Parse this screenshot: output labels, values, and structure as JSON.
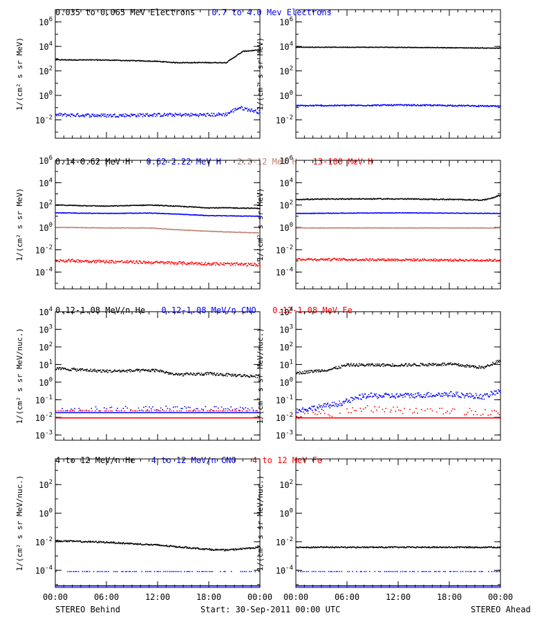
{
  "colors": {
    "black": "#000000",
    "blue": "#0000ff",
    "tan": "#c08070",
    "red": "#ff0000",
    "background": "#ffffff"
  },
  "footer": {
    "left": "STEREO Behind",
    "center": "Start: 30-Sep-2011 00:00 UTC",
    "right": "STEREO Ahead"
  },
  "x_ticks": [
    "00:00",
    "06:00",
    "12:00",
    "18:00",
    "00:00"
  ],
  "chart_data": [
    {
      "type": "scatter",
      "row": 0,
      "col": 0,
      "scale": "log",
      "ylim_log": [
        -3.5,
        7
      ],
      "ylabel": "1/(cm² s sr MeV)",
      "y_ticks": [
        {
          "exp": 6,
          "label": "10^6"
        },
        {
          "exp": 4,
          "label": "10^4"
        },
        {
          "exp": 2,
          "label": "10^2"
        },
        {
          "exp": 0,
          "label": "10^0"
        },
        {
          "exp": -2,
          "label": "10^-2"
        }
      ],
      "x_hours": [
        0,
        24
      ],
      "header": [
        {
          "text": "0.035 to 0.065 MeV Electrons",
          "color": "#000000"
        },
        {
          "text": "0.7 to 4.0 Mev Electrons",
          "color": "#0000ff"
        }
      ],
      "series": [
        {
          "color": "#000000",
          "points": [
            [
              0,
              2.95
            ],
            [
              6,
              2.93
            ],
            [
              12,
              2.82
            ],
            [
              14,
              2.72
            ],
            [
              18,
              2.72
            ],
            [
              20,
              2.72
            ],
            [
              21,
              3.2
            ],
            [
              22,
              3.65
            ],
            [
              24,
              3.75
            ]
          ],
          "noise": 0.03
        },
        {
          "color": "#0000ff",
          "points": [
            [
              0,
              -1.55
            ],
            [
              6,
              -1.6
            ],
            [
              12,
              -1.55
            ],
            [
              18,
              -1.55
            ],
            [
              20,
              -1.5
            ],
            [
              21.5,
              -0.95
            ],
            [
              22.5,
              -1.1
            ],
            [
              24,
              -1.35
            ]
          ],
          "noise": 0.14
        }
      ]
    },
    {
      "type": "scatter",
      "row": 0,
      "col": 1,
      "scale": "log",
      "ylim_log": [
        -3.5,
        7
      ],
      "ylabel": "1/(cm² s sr MeV)",
      "y_ticks": [
        {
          "exp": 6,
          "label": "10^6"
        },
        {
          "exp": 4,
          "label": "10^4"
        },
        {
          "exp": 2,
          "label": "10^2"
        },
        {
          "exp": 0,
          "label": "10^0"
        },
        {
          "exp": -2,
          "label": "10^-2"
        }
      ],
      "x_hours": [
        0,
        24
      ],
      "header": [],
      "series": [
        {
          "color": "#000000",
          "points": [
            [
              0,
              3.98
            ],
            [
              12,
              3.97
            ],
            [
              24,
              3.9
            ]
          ],
          "noise": 0.02
        },
        {
          "color": "#0000ff",
          "points": [
            [
              0,
              -0.8
            ],
            [
              6,
              -0.78
            ],
            [
              12,
              -0.75
            ],
            [
              18,
              -0.78
            ],
            [
              24,
              -0.85
            ]
          ],
          "noise": 0.05
        }
      ]
    },
    {
      "type": "scatter",
      "row": 1,
      "col": 0,
      "scale": "log",
      "ylim_log": [
        -5.5,
        6
      ],
      "ylabel": "1/(cm² s sr MeV)",
      "y_ticks": [
        {
          "exp": 6,
          "label": "10^6"
        },
        {
          "exp": 4,
          "label": "10^4"
        },
        {
          "exp": 2,
          "label": "10^2"
        },
        {
          "exp": 0,
          "label": "10^0"
        },
        {
          "exp": -2,
          "label": "10^-2"
        },
        {
          "exp": -4,
          "label": "10^-4"
        }
      ],
      "x_hours": [
        0,
        24
      ],
      "header": [
        {
          "text": "0.14-0.62 MeV H",
          "color": "#000000"
        },
        {
          "text": "0.62-2.22 MeV H",
          "color": "#0000ff"
        },
        {
          "text": "2.2-12 MeV H",
          "color": "#c08070"
        },
        {
          "text": "13-100 MeV H",
          "color": "#ff0000"
        }
      ],
      "series": [
        {
          "color": "#000000",
          "points": [
            [
              0,
              2.05
            ],
            [
              6,
              1.95
            ],
            [
              11,
              2.05
            ],
            [
              14,
              1.95
            ],
            [
              18,
              1.8
            ],
            [
              20,
              1.8
            ],
            [
              24,
              1.75
            ]
          ],
          "noise": 0.03
        },
        {
          "color": "#0000ff",
          "points": [
            [
              0,
              1.35
            ],
            [
              6,
              1.3
            ],
            [
              11,
              1.33
            ],
            [
              14,
              1.25
            ],
            [
              18,
              1.1
            ],
            [
              24,
              1.05
            ]
          ],
          "noise": 0.02
        },
        {
          "color": "#c08070",
          "points": [
            [
              0,
              0.05
            ],
            [
              6,
              0.0
            ],
            [
              11,
              0.0
            ],
            [
              14,
              -0.15
            ],
            [
              18,
              -0.3
            ],
            [
              24,
              -0.45
            ]
          ],
          "noise": 0.02
        },
        {
          "color": "#ff0000",
          "points": [
            [
              0,
              -2.9
            ],
            [
              6,
              -3.0
            ],
            [
              12,
              -3.1
            ],
            [
              18,
              -3.2
            ],
            [
              24,
              -3.3
            ]
          ],
          "noise": 0.13
        }
      ]
    },
    {
      "type": "scatter",
      "row": 1,
      "col": 1,
      "scale": "log",
      "ylim_log": [
        -5.5,
        6
      ],
      "ylabel": "1/(cm² s sr MeV)",
      "y_ticks": [
        {
          "exp": 6,
          "label": "10^6"
        },
        {
          "exp": 4,
          "label": "10^4"
        },
        {
          "exp": 2,
          "label": "10^2"
        },
        {
          "exp": 0,
          "label": "10^0"
        },
        {
          "exp": -2,
          "label": "10^-2"
        },
        {
          "exp": -4,
          "label": "10^-4"
        }
      ],
      "x_hours": [
        0,
        24
      ],
      "header": [],
      "series": [
        {
          "color": "#000000",
          "points": [
            [
              0,
              2.55
            ],
            [
              6,
              2.6
            ],
            [
              12,
              2.6
            ],
            [
              18,
              2.55
            ],
            [
              22,
              2.5
            ],
            [
              23,
              2.7
            ],
            [
              24,
              2.95
            ]
          ],
          "noise": 0.04
        },
        {
          "color": "#0000ff",
          "points": [
            [
              0,
              1.3
            ],
            [
              12,
              1.35
            ],
            [
              24,
              1.3
            ]
          ],
          "noise": 0.02
        },
        {
          "color": "#c08070",
          "points": [
            [
              0,
              0.0
            ],
            [
              12,
              0.0
            ],
            [
              24,
              0.0
            ]
          ],
          "noise": 0.015
        },
        {
          "color": "#ff0000",
          "points": [
            [
              0,
              -2.8
            ],
            [
              12,
              -2.85
            ],
            [
              24,
              -2.9
            ]
          ],
          "noise": 0.1
        }
      ]
    },
    {
      "type": "scatter",
      "row": 2,
      "col": 0,
      "scale": "log",
      "ylim_log": [
        -3.3,
        4
      ],
      "ylabel": "1/(cm² s sr MeV/nuc.)",
      "y_ticks": [
        {
          "exp": 4,
          "label": "10^4"
        },
        {
          "exp": 3,
          "label": "10^3"
        },
        {
          "exp": 2,
          "label": "10^2"
        },
        {
          "exp": 1,
          "label": "10^1"
        },
        {
          "exp": 0,
          "label": "10^0"
        },
        {
          "exp": -1,
          "label": "10^-1"
        },
        {
          "exp": -2,
          "label": "10^-2"
        },
        {
          "exp": -3,
          "label": "10^-3"
        }
      ],
      "x_hours": [
        0,
        24
      ],
      "header": [
        {
          "text": "0.12-1.08 MeV/n He",
          "color": "#000000"
        },
        {
          "text": "0.12-1.08 MeV/n CNO",
          "color": "#0000ff"
        },
        {
          "text": "0.12-1.08 MeV Fe",
          "color": "#ff0000"
        }
      ],
      "series": [
        {
          "color": "#000000",
          "points": [
            [
              0,
              0.8
            ],
            [
              6,
              0.65
            ],
            [
              12,
              0.7
            ],
            [
              14,
              0.45
            ],
            [
              18,
              0.5
            ],
            [
              24,
              0.35
            ]
          ],
          "noise": 0.08
        },
        {
          "color": "#0000ff",
          "points": [
            [
              0,
              -1.5
            ],
            [
              12,
              -1.45
            ],
            [
              24,
              -1.5
            ]
          ],
          "noise": 0.12,
          "sparse": true
        },
        {
          "color": "#0000ff",
          "points": [
            [
              0,
              -1.7
            ],
            [
              24,
              -1.7
            ]
          ],
          "noise": 0.0
        },
        {
          "color": "#ff0000",
          "points": [
            [
              0,
              -2.0
            ],
            [
              24,
              -2.0
            ]
          ],
          "noise": 0.0
        },
        {
          "color": "#ff0000",
          "points": [
            [
              0,
              -1.6
            ],
            [
              24,
              -1.6
            ]
          ],
          "noise": 0.0,
          "sparse": true
        }
      ]
    },
    {
      "type": "scatter",
      "row": 2,
      "col": 1,
      "scale": "log",
      "ylim_log": [
        -3.3,
        4
      ],
      "ylabel": "1/(cm² s sr MeV/nuc.)",
      "y_ticks": [
        {
          "exp": 4,
          "label": "10^4"
        },
        {
          "exp": 3,
          "label": "10^3"
        },
        {
          "exp": 2,
          "label": "10^2"
        },
        {
          "exp": 1,
          "label": "10^1"
        },
        {
          "exp": 0,
          "label": "10^0"
        },
        {
          "exp": -1,
          "label": "10^-1"
        },
        {
          "exp": -2,
          "label": "10^-2"
        },
        {
          "exp": -3,
          "label": "10^-3"
        }
      ],
      "x_hours": [
        0,
        24
      ],
      "header": [],
      "series": [
        {
          "color": "#000000",
          "points": [
            [
              0,
              0.55
            ],
            [
              4,
              0.75
            ],
            [
              6,
              1.0
            ],
            [
              12,
              1.0
            ],
            [
              18,
              1.05
            ],
            [
              22,
              0.85
            ],
            [
              24,
              1.3
            ]
          ],
          "noise": 0.08
        },
        {
          "color": "#0000ff",
          "points": [
            [
              0,
              -1.6
            ],
            [
              5,
              -1.2
            ],
            [
              8,
              -0.75
            ],
            [
              12,
              -0.75
            ],
            [
              18,
              -0.65
            ],
            [
              22,
              -0.8
            ],
            [
              24,
              -0.45
            ]
          ],
          "noise": 0.15
        },
        {
          "color": "#ff0000",
          "points": [
            [
              0,
              -1.9
            ],
            [
              5,
              -1.7
            ],
            [
              8,
              -1.5
            ],
            [
              14,
              -1.6
            ],
            [
              24,
              -1.7
            ]
          ],
          "noise": 0.2,
          "sparse": true
        },
        {
          "color": "#ff0000",
          "points": [
            [
              0,
              -2.0
            ],
            [
              24,
              -2.0
            ]
          ],
          "noise": 0.0
        }
      ]
    },
    {
      "type": "scatter",
      "row": 3,
      "col": 0,
      "scale": "log",
      "ylim_log": [
        -5.2,
        3.8
      ],
      "ylabel": "1/(cm² s sr MeV/nuc.)",
      "y_ticks": [
        {
          "exp": 2,
          "label": "10^2"
        },
        {
          "exp": 0,
          "label": "10^0"
        },
        {
          "exp": -2,
          "label": "10^-2"
        },
        {
          "exp": -4,
          "label": "10^-4"
        }
      ],
      "x_hours": [
        0,
        24
      ],
      "header": [
        {
          "text": "4 to 12 MeV/n He",
          "color": "#000000"
        },
        {
          "text": "4 to 12 MeV/n CNO",
          "color": "#0000ff"
        },
        {
          "text": "4 to 12 MeV Fe",
          "color": "#ff0000"
        }
      ],
      "series": [
        {
          "color": "#000000",
          "points": [
            [
              0,
              -1.9
            ],
            [
              6,
              -2.0
            ],
            [
              12,
              -2.2
            ],
            [
              18,
              -2.5
            ],
            [
              20,
              -2.55
            ],
            [
              24,
              -2.35
            ]
          ],
          "noise": 0.05
        },
        {
          "color": "#0000ff",
          "points": [
            [
              0,
              -4.05
            ],
            [
              24,
              -4.05
            ]
          ],
          "noise": 0.0,
          "sparse": true
        },
        {
          "color": "#0000ff",
          "points": [
            [
              0,
              -5.05
            ],
            [
              24,
              -5.05
            ]
          ],
          "noise": 0.0
        }
      ]
    },
    {
      "type": "scatter",
      "row": 3,
      "col": 1,
      "scale": "log",
      "ylim_log": [
        -5.2,
        3.8
      ],
      "ylabel": "1/(cm² s sr MeV/nuc.)",
      "y_ticks": [
        {
          "exp": 2,
          "label": "10^2"
        },
        {
          "exp": 0,
          "label": "10^0"
        },
        {
          "exp": -2,
          "label": "10^-2"
        },
        {
          "exp": -4,
          "label": "10^-4"
        }
      ],
      "x_hours": [
        0,
        24
      ],
      "header": [],
      "series": [
        {
          "color": "#000000",
          "points": [
            [
              0,
              -2.35
            ],
            [
              12,
              -2.35
            ],
            [
              24,
              -2.35
            ]
          ],
          "noise": 0.04
        },
        {
          "color": "#0000ff",
          "points": [
            [
              0,
              -4.05
            ],
            [
              24,
              -4.05
            ]
          ],
          "noise": 0.0,
          "sparse": true
        },
        {
          "color": "#0000ff",
          "points": [
            [
              0,
              -5.05
            ],
            [
              24,
              -5.05
            ]
          ],
          "noise": 0.0
        }
      ]
    }
  ]
}
